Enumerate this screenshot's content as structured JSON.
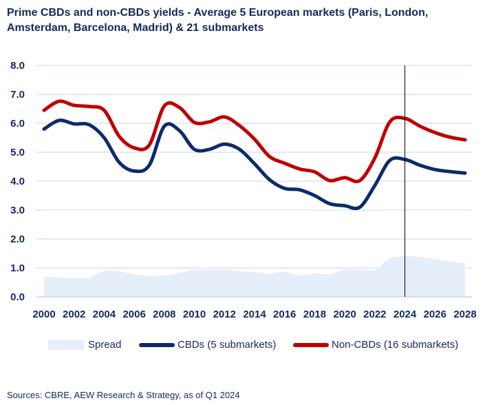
{
  "title_line1": "Prime CBDs and non-CBDs yields - Average 5 European markets (Paris, London,",
  "title_line2": "Amsterdam, Barcelona, Madrid) & 21 submarkets",
  "source": "Sources: CBRE, AEW Research & Strategy, as of Q1 2024",
  "colors": {
    "cbd": "#0e2a6b",
    "noncbd": "#c00000",
    "spread": "#e6eef9",
    "grid": "#c9d6ea",
    "axis_text": "#14285a"
  },
  "chart_data": {
    "type": "line",
    "title": "Prime CBDs and non-CBDs yields - Average 5 European markets (Paris, London, Amsterdam, Barcelona, Madrid) & 21 submarkets",
    "xlim": [
      2000,
      2028
    ],
    "ylim": [
      0,
      8
    ],
    "y_ticks": [
      "0.0",
      "1.0",
      "2.0",
      "3.0",
      "4.0",
      "5.0",
      "6.0",
      "7.0",
      "8.0"
    ],
    "x_ticks": [
      "2000",
      "2002",
      "2004",
      "2006",
      "2008",
      "2010",
      "2012",
      "2014",
      "2016",
      "2018",
      "2020",
      "2022",
      "2024",
      "2026",
      "2028"
    ],
    "grid": true,
    "legend_position": "bottom",
    "vertical_marker_x": 2024,
    "series": [
      {
        "name": "Spread",
        "kind": "area",
        "x": [
          2000,
          2001,
          2002,
          2003,
          2004,
          2005,
          2006,
          2007,
          2008,
          2009,
          2010,
          2011,
          2012,
          2013,
          2014,
          2015,
          2016,
          2017,
          2018,
          2019,
          2020,
          2021,
          2022,
          2023,
          2024,
          2025,
          2026,
          2027,
          2028
        ],
        "values": [
          0.7,
          0.66,
          0.65,
          0.65,
          0.92,
          0.88,
          0.78,
          0.72,
          0.73,
          0.83,
          0.93,
          0.95,
          0.95,
          0.88,
          0.86,
          0.79,
          0.88,
          0.73,
          0.82,
          0.77,
          0.96,
          0.94,
          0.92,
          1.35,
          1.42,
          1.38,
          1.3,
          1.23,
          1.15
        ]
      },
      {
        "name": "CBDs (5 submarkets)",
        "kind": "line",
        "x": [
          2000,
          2001,
          2002,
          2003,
          2004,
          2005,
          2006,
          2007,
          2008,
          2009,
          2010,
          2011,
          2012,
          2013,
          2014,
          2015,
          2016,
          2017,
          2018,
          2019,
          2020,
          2021,
          2022,
          2023,
          2024,
          2025,
          2026,
          2027,
          2028
        ],
        "values": [
          5.8,
          6.1,
          5.98,
          5.95,
          5.5,
          4.65,
          4.35,
          4.55,
          5.9,
          5.75,
          5.1,
          5.1,
          5.28,
          5.1,
          4.6,
          4.05,
          3.75,
          3.7,
          3.5,
          3.22,
          3.15,
          3.1,
          3.85,
          4.72,
          4.75,
          4.55,
          4.4,
          4.33,
          4.28
        ]
      },
      {
        "name": "Non-CBDs (16 submarkets)",
        "kind": "line",
        "x": [
          2000,
          2001,
          2002,
          2003,
          2004,
          2005,
          2006,
          2007,
          2008,
          2009,
          2010,
          2011,
          2012,
          2013,
          2014,
          2015,
          2016,
          2017,
          2018,
          2019,
          2020,
          2021,
          2022,
          2023,
          2024,
          2025,
          2026,
          2027,
          2028
        ],
        "values": [
          6.45,
          6.76,
          6.62,
          6.58,
          6.45,
          5.55,
          5.15,
          5.25,
          6.6,
          6.55,
          6.03,
          6.05,
          6.22,
          5.92,
          5.45,
          4.85,
          4.62,
          4.42,
          4.32,
          4.02,
          4.12,
          4.02,
          4.8,
          6.05,
          6.17,
          5.9,
          5.68,
          5.52,
          5.43
        ]
      }
    ]
  }
}
